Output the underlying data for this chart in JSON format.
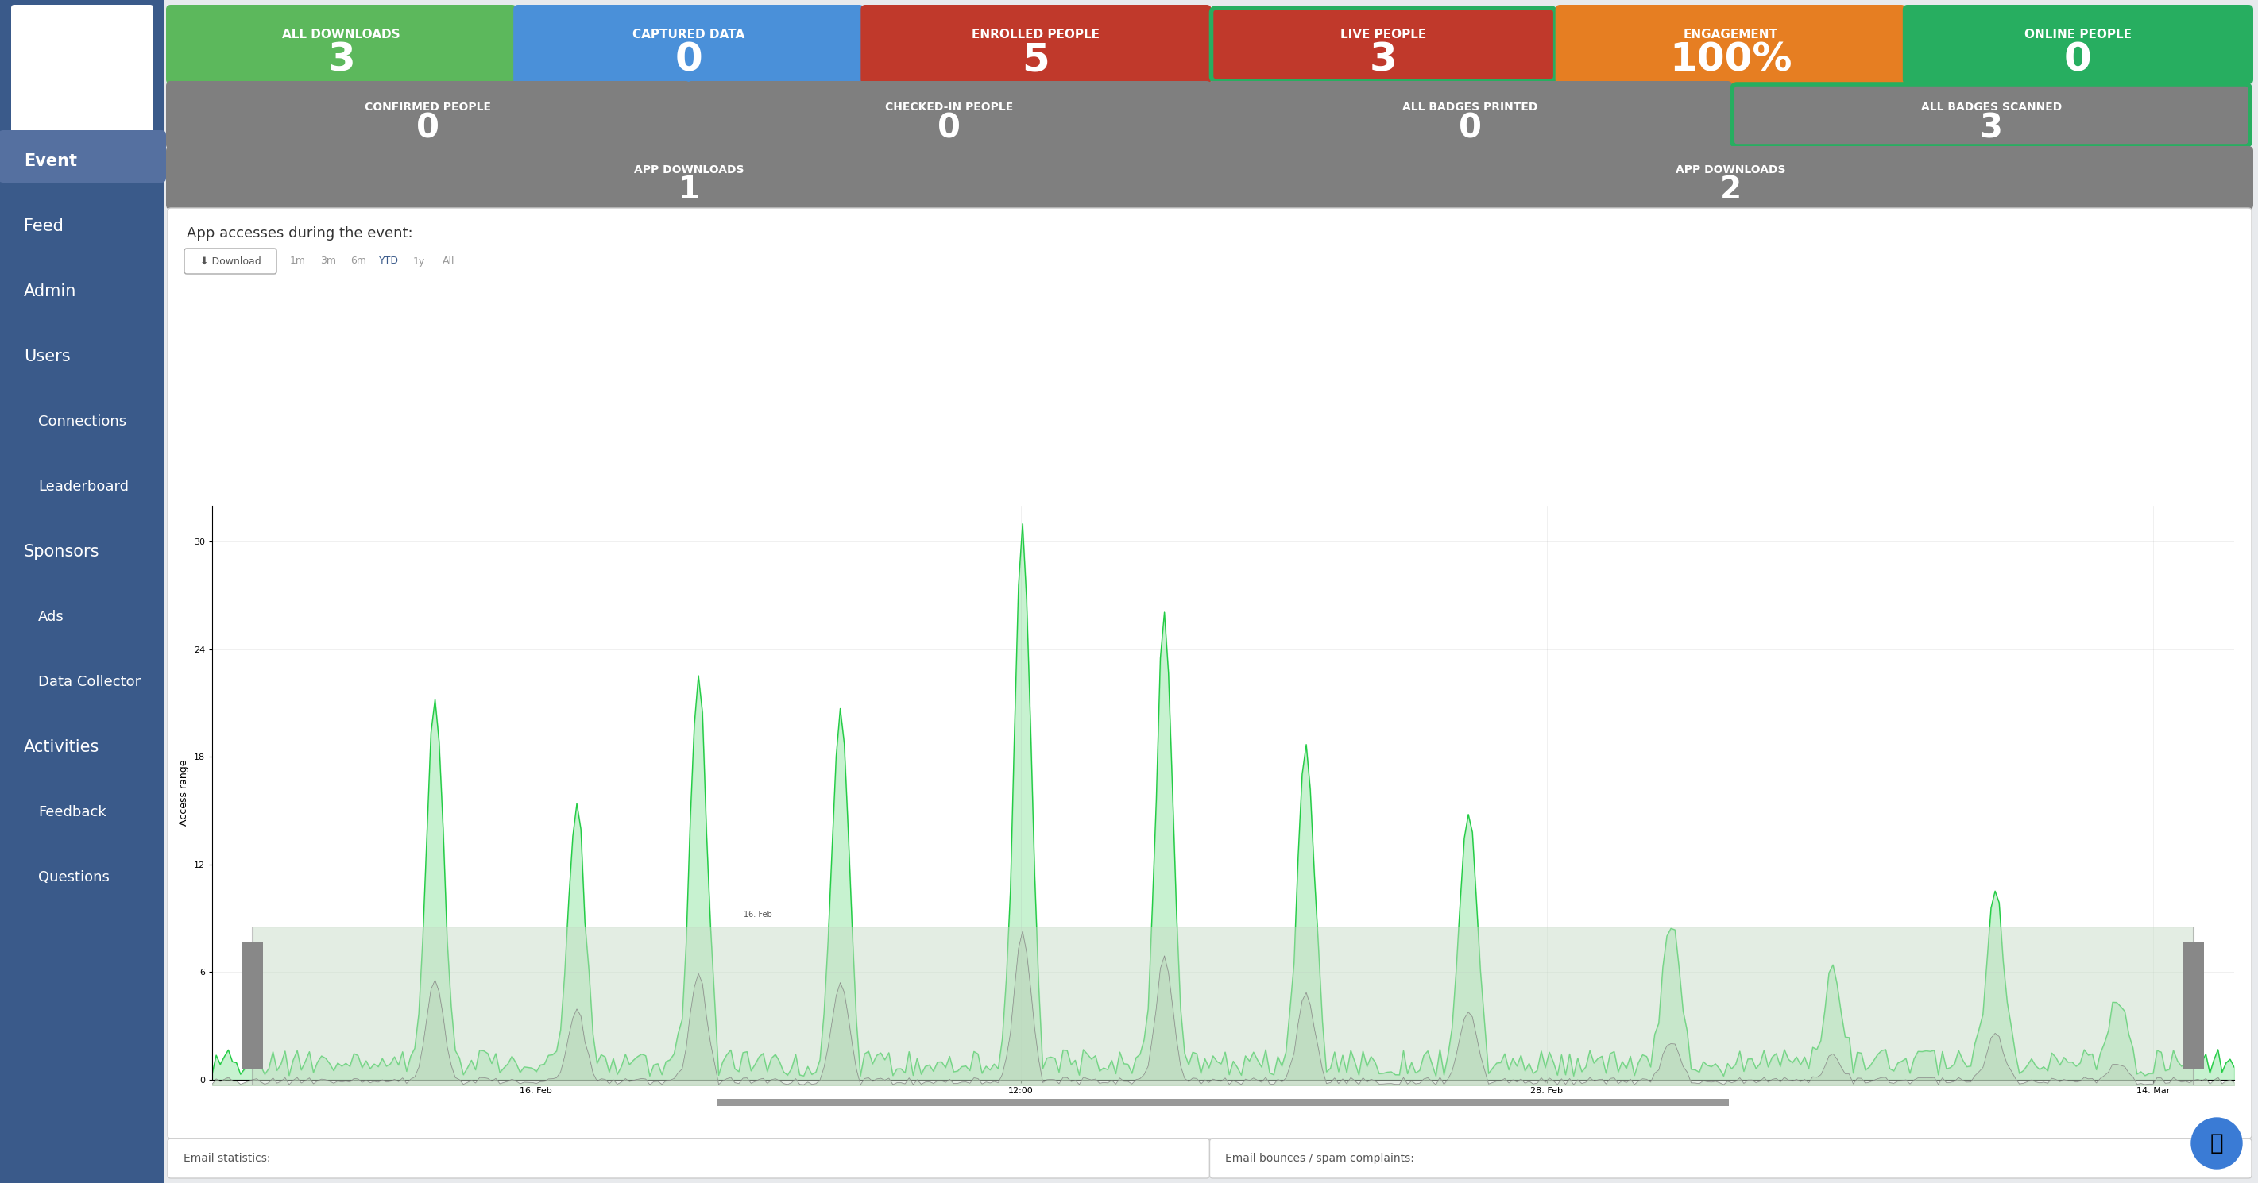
{
  "sidebar_color": "#3a5a8a",
  "sidebar_active_color": "#5570a0",
  "bg_color": "#e8eaed",
  "white": "#ffffff",
  "chart_line_color": "#22cc44",
  "sidebar_items": [
    "Event",
    "Feed",
    "Admin",
    "Users",
    "Connections",
    "Leaderboard",
    "Sponsors",
    "Ads",
    "Data Collector",
    "Activities",
    "Feedback",
    "Questions"
  ],
  "sidebar_indented": [
    "Connections",
    "Leaderboard",
    "Ads",
    "Data Collector",
    "Feedback",
    "Questions"
  ],
  "top_cards": [
    {
      "label": "ALL DOWNLOADS",
      "value": "3",
      "bg": "#5cb85c",
      "border": null
    },
    {
      "label": "CAPTURED DATA",
      "value": "0",
      "bg": "#4a90d9",
      "border": null
    },
    {
      "label": "ENROLLED PEOPLE",
      "value": "5",
      "bg": "#c0392b",
      "border": null
    },
    {
      "label": "LIVE PEOPLE",
      "value": "3",
      "bg": "#c0392b",
      "border": "#27ae60"
    },
    {
      "label": "ENGAGEMENT",
      "value": "100%",
      "bg": "#e67e22",
      "border": null
    },
    {
      "label": "ONLINE PEOPLE",
      "value": "0",
      "bg": "#27ae60",
      "border": null
    }
  ],
  "mid_cards": [
    {
      "label": "CONFIRMED PEOPLE",
      "value": "0",
      "bg": "#7f7f7f",
      "border": null
    },
    {
      "label": "CHECKED-IN PEOPLE",
      "value": "0",
      "bg": "#7f7f7f",
      "border": null
    },
    {
      "label": "ALL BADGES PRINTED",
      "value": "0",
      "bg": "#7f7f7f",
      "border": null
    },
    {
      "label": "ALL BADGES SCANNED",
      "value": "3",
      "bg": "#7f7f7f",
      "border": "#27ae60"
    }
  ],
  "app_cards": [
    {
      "label": "APP DOWNLOADS",
      "value": "1",
      "bg": "#7f7f7f"
    },
    {
      "label": "APP DOWNLOADS",
      "value": "2",
      "bg": "#7f7f7f"
    }
  ],
  "chart_title": "App accesses during the event:",
  "time_labels": [
    "16. Feb",
    "12:00",
    "28. Feb",
    "14. Mar"
  ],
  "y_ticks": [
    0,
    6,
    12,
    18,
    24,
    30
  ],
  "y_label": "Access range",
  "filters": [
    "1m",
    "3m",
    "6m",
    "YTD",
    "1y",
    "All"
  ],
  "filter_active": "YTD",
  "email_labels": [
    "Email statistics:",
    "Email bounces / spam complaints:"
  ]
}
